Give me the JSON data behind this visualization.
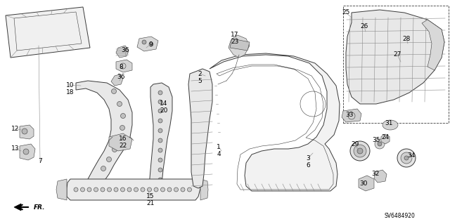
{
  "background_color": "#ffffff",
  "diagram_code": "SV6484920",
  "line_color": "#3a3a3a",
  "light_gray": "#c0c0c0",
  "mid_gray": "#888888",
  "hatch_color": "#888888",
  "labels": [
    [
      "7",
      57,
      230,
      6.5
    ],
    [
      "9",
      214,
      63,
      6.5
    ],
    [
      "36",
      178,
      72,
      6.5
    ],
    [
      "8",
      172,
      95,
      6.5
    ],
    [
      "36",
      172,
      110,
      6.5
    ],
    [
      "10",
      100,
      121,
      6.5
    ],
    [
      "18",
      100,
      131,
      6.5
    ],
    [
      "12",
      22,
      183,
      6.5
    ],
    [
      "13",
      22,
      212,
      6.5
    ],
    [
      "16",
      175,
      198,
      6.5
    ],
    [
      "22",
      175,
      208,
      6.5
    ],
    [
      "14",
      233,
      148,
      6.5
    ],
    [
      "20",
      233,
      158,
      6.5
    ],
    [
      "15",
      214,
      280,
      6.5
    ],
    [
      "21",
      214,
      290,
      6.5
    ],
    [
      "2",
      284,
      105,
      6.5
    ],
    [
      "5",
      284,
      115,
      6.5
    ],
    [
      "17",
      334,
      50,
      6.5
    ],
    [
      "23",
      334,
      60,
      6.5
    ],
    [
      "1",
      311,
      209,
      6.5
    ],
    [
      "4",
      311,
      219,
      6.5
    ],
    [
      "3",
      438,
      225,
      6.5
    ],
    [
      "6",
      438,
      235,
      6.5
    ],
    [
      "25",
      492,
      18,
      6.5
    ],
    [
      "26",
      518,
      38,
      6.5
    ],
    [
      "27",
      565,
      78,
      6.5
    ],
    [
      "28",
      578,
      55,
      6.5
    ],
    [
      "33",
      497,
      163,
      6.5
    ],
    [
      "31",
      553,
      175,
      6.5
    ],
    [
      "29",
      505,
      205,
      6.5
    ],
    [
      "35",
      535,
      200,
      6.5
    ],
    [
      "24",
      548,
      195,
      6.5
    ],
    [
      "30",
      517,
      262,
      6.5
    ],
    [
      "32",
      534,
      248,
      6.5
    ],
    [
      "34",
      585,
      222,
      6.5
    ]
  ]
}
